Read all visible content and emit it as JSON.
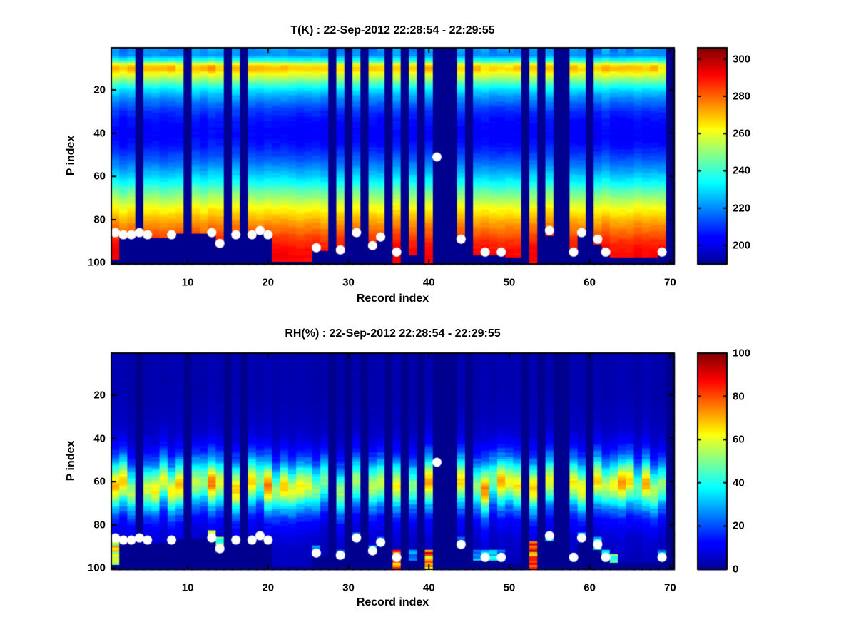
{
  "figure": {
    "background": "#ffffff",
    "axis_color": "#000000"
  },
  "chart_data": [
    {
      "type": "heatmap",
      "variable": "T",
      "title": "T(K) : 22-Sep-2012 22:28:54 - 22:29:55",
      "xlabel": "Record index",
      "ylabel": "P index",
      "x_range": [
        1,
        70
      ],
      "y_range": [
        1,
        100
      ],
      "y_axis_reversed": true,
      "xticks": [
        10,
        20,
        30,
        40,
        50,
        60,
        70
      ],
      "yticks": [
        20,
        40,
        60,
        80,
        100
      ],
      "grid": false,
      "colormap": "jet",
      "color_range": [
        190,
        306
      ],
      "colorbar_ticks": [
        200,
        220,
        240,
        260,
        280,
        300
      ],
      "profile_anchors": [
        [
          1,
          226
        ],
        [
          2,
          224
        ],
        [
          4,
          221
        ],
        [
          6,
          234
        ],
        [
          8,
          258
        ],
        [
          9,
          266
        ],
        [
          10,
          268
        ],
        [
          11,
          267
        ],
        [
          13,
          259
        ],
        [
          15,
          252
        ],
        [
          17,
          243
        ],
        [
          20,
          231
        ],
        [
          23,
          223
        ],
        [
          26,
          217
        ],
        [
          30,
          210
        ],
        [
          34,
          206
        ],
        [
          38,
          204
        ],
        [
          42,
          204
        ],
        [
          46,
          207
        ],
        [
          50,
          212
        ],
        [
          54,
          218
        ],
        [
          58,
          225
        ],
        [
          62,
          233
        ],
        [
          66,
          243
        ],
        [
          70,
          252
        ],
        [
          74,
          261
        ],
        [
          78,
          268
        ],
        [
          82,
          275
        ],
        [
          86,
          281
        ],
        [
          90,
          287
        ],
        [
          94,
          291
        ],
        [
          97,
          292
        ],
        [
          100,
          290
        ]
      ],
      "band_center_p": 9.5,
      "missing_records": [
        4,
        10,
        15,
        17,
        28,
        30,
        32,
        35,
        37,
        39,
        41,
        42,
        43,
        45,
        52,
        54,
        56,
        57,
        60,
        70
      ],
      "surface_p_by_record": [
        98,
        88,
        88,
        0,
        88,
        88,
        88,
        88,
        86,
        0,
        86,
        86,
        87,
        92,
        0,
        88,
        0,
        88,
        86,
        88,
        99,
        99,
        99,
        99,
        99,
        94,
        94,
        0,
        95,
        0,
        87,
        0,
        93,
        89,
        0,
        100,
        0,
        96,
        0,
        100,
        0,
        0,
        0,
        90,
        0,
        96,
        96,
        96,
        96,
        97,
        97,
        0,
        100,
        0,
        87,
        0,
        0,
        96,
        87,
        0,
        91,
        95,
        97,
        97,
        97,
        97,
        97,
        97,
        96,
        0
      ],
      "dots": [
        [
          1,
          86
        ],
        [
          2,
          87
        ],
        [
          3,
          87
        ],
        [
          4,
          86
        ],
        [
          5,
          87
        ],
        [
          8,
          87
        ],
        [
          13,
          86
        ],
        [
          14,
          91
        ],
        [
          16,
          87
        ],
        [
          18,
          87
        ],
        [
          19,
          85
        ],
        [
          20,
          87
        ],
        [
          26,
          93
        ],
        [
          29,
          94
        ],
        [
          31,
          86
        ],
        [
          33,
          92
        ],
        [
          34,
          88
        ],
        [
          36,
          95
        ],
        [
          41,
          51
        ],
        [
          44,
          89
        ],
        [
          47,
          95
        ],
        [
          49,
          95
        ],
        [
          55,
          85
        ],
        [
          58,
          95
        ],
        [
          59,
          86
        ],
        [
          61,
          89
        ],
        [
          62,
          95
        ],
        [
          69,
          95
        ]
      ],
      "markers": {
        "color": "#ffffff",
        "shape": "circle"
      }
    },
    {
      "type": "heatmap",
      "variable": "RH",
      "title": "RH(%) : 22-Sep-2012 22:28:54 - 22:29:55",
      "xlabel": "Record index",
      "ylabel": "P index",
      "x_range": [
        1,
        70
      ],
      "y_range": [
        1,
        100
      ],
      "y_axis_reversed": true,
      "xticks": [
        10,
        20,
        30,
        40,
        50,
        60,
        70
      ],
      "yticks": [
        20,
        40,
        60,
        80,
        100
      ],
      "grid": false,
      "colormap": "jet",
      "color_range": [
        0,
        100
      ],
      "colorbar_ticks": [
        0,
        20,
        40,
        60,
        80,
        100
      ],
      "profile_anchors": [
        [
          1,
          3
        ],
        [
          10,
          3
        ],
        [
          20,
          3
        ],
        [
          30,
          4
        ],
        [
          36,
          5
        ],
        [
          40,
          7
        ],
        [
          44,
          11
        ],
        [
          48,
          18
        ],
        [
          51,
          26
        ],
        [
          54,
          37
        ],
        [
          57,
          48
        ],
        [
          59,
          55
        ],
        [
          61,
          60
        ],
        [
          63,
          60
        ],
        [
          65,
          55
        ],
        [
          67,
          48
        ],
        [
          69,
          40
        ],
        [
          71,
          32
        ],
        [
          74,
          23
        ],
        [
          77,
          16
        ],
        [
          80,
          11
        ],
        [
          84,
          8
        ],
        [
          88,
          6
        ],
        [
          92,
          5
        ],
        [
          100,
          4
        ]
      ],
      "missing_records": [
        4,
        10,
        15,
        17,
        28,
        30,
        32,
        35,
        37,
        39,
        41,
        42,
        43,
        45,
        52,
        54,
        56,
        57,
        60,
        70
      ],
      "surface_p_by_record": [
        98,
        88,
        88,
        0,
        88,
        88,
        88,
        88,
        86,
        0,
        86,
        86,
        87,
        92,
        0,
        88,
        0,
        88,
        86,
        88,
        99,
        99,
        99,
        99,
        99,
        94,
        94,
        0,
        95,
        0,
        87,
        0,
        93,
        89,
        0,
        100,
        0,
        96,
        0,
        100,
        0,
        0,
        0,
        90,
        0,
        96,
        96,
        96,
        96,
        97,
        97,
        0,
        100,
        0,
        87,
        0,
        0,
        96,
        87,
        0,
        91,
        95,
        97,
        97,
        97,
        97,
        97,
        97,
        96,
        0
      ],
      "bottom_patches": [
        [
          1,
          85,
          98,
          62
        ],
        [
          5,
          88,
          96,
          26
        ],
        [
          8,
          86,
          94,
          24
        ],
        [
          13,
          83,
          87,
          55
        ],
        [
          14,
          86,
          92,
          52
        ],
        [
          16,
          86,
          94,
          22
        ],
        [
          18,
          86,
          94,
          24
        ],
        [
          19,
          84,
          95,
          26
        ],
        [
          20,
          86,
          94,
          24
        ],
        [
          26,
          90,
          97,
          30
        ],
        [
          29,
          92,
          98,
          26
        ],
        [
          31,
          84,
          96,
          26
        ],
        [
          33,
          90,
          97,
          28
        ],
        [
          34,
          86,
          94,
          26
        ],
        [
          36,
          92,
          100,
          85
        ],
        [
          38,
          92,
          96,
          28
        ],
        [
          40,
          92,
          100,
          82
        ],
        [
          44,
          86,
          95,
          26
        ],
        [
          46,
          92,
          96,
          28
        ],
        [
          47,
          92,
          98,
          30
        ],
        [
          48,
          92,
          98,
          36
        ],
        [
          49,
          92,
          98,
          26
        ],
        [
          53,
          88,
          100,
          85
        ],
        [
          55,
          84,
          95,
          28
        ],
        [
          59,
          84,
          95,
          26
        ],
        [
          61,
          86,
          95,
          35
        ],
        [
          62,
          92,
          99,
          45
        ],
        [
          63,
          94,
          99,
          50
        ],
        [
          69,
          92,
          98,
          30
        ]
      ],
      "dots": [
        [
          1,
          86
        ],
        [
          2,
          87
        ],
        [
          3,
          87
        ],
        [
          4,
          86
        ],
        [
          5,
          87
        ],
        [
          8,
          87
        ],
        [
          13,
          86
        ],
        [
          14,
          91
        ],
        [
          16,
          87
        ],
        [
          18,
          87
        ],
        [
          19,
          85
        ],
        [
          20,
          87
        ],
        [
          26,
          93
        ],
        [
          29,
          94
        ],
        [
          31,
          86
        ],
        [
          33,
          92
        ],
        [
          34,
          88
        ],
        [
          36,
          95
        ],
        [
          41,
          51
        ],
        [
          44,
          89
        ],
        [
          47,
          95
        ],
        [
          49,
          95
        ],
        [
          55,
          85
        ],
        [
          58,
          95
        ],
        [
          59,
          86
        ],
        [
          61,
          89
        ],
        [
          62,
          95
        ],
        [
          69,
          95
        ]
      ],
      "markers": {
        "color": "#ffffff",
        "shape": "circle"
      }
    }
  ]
}
